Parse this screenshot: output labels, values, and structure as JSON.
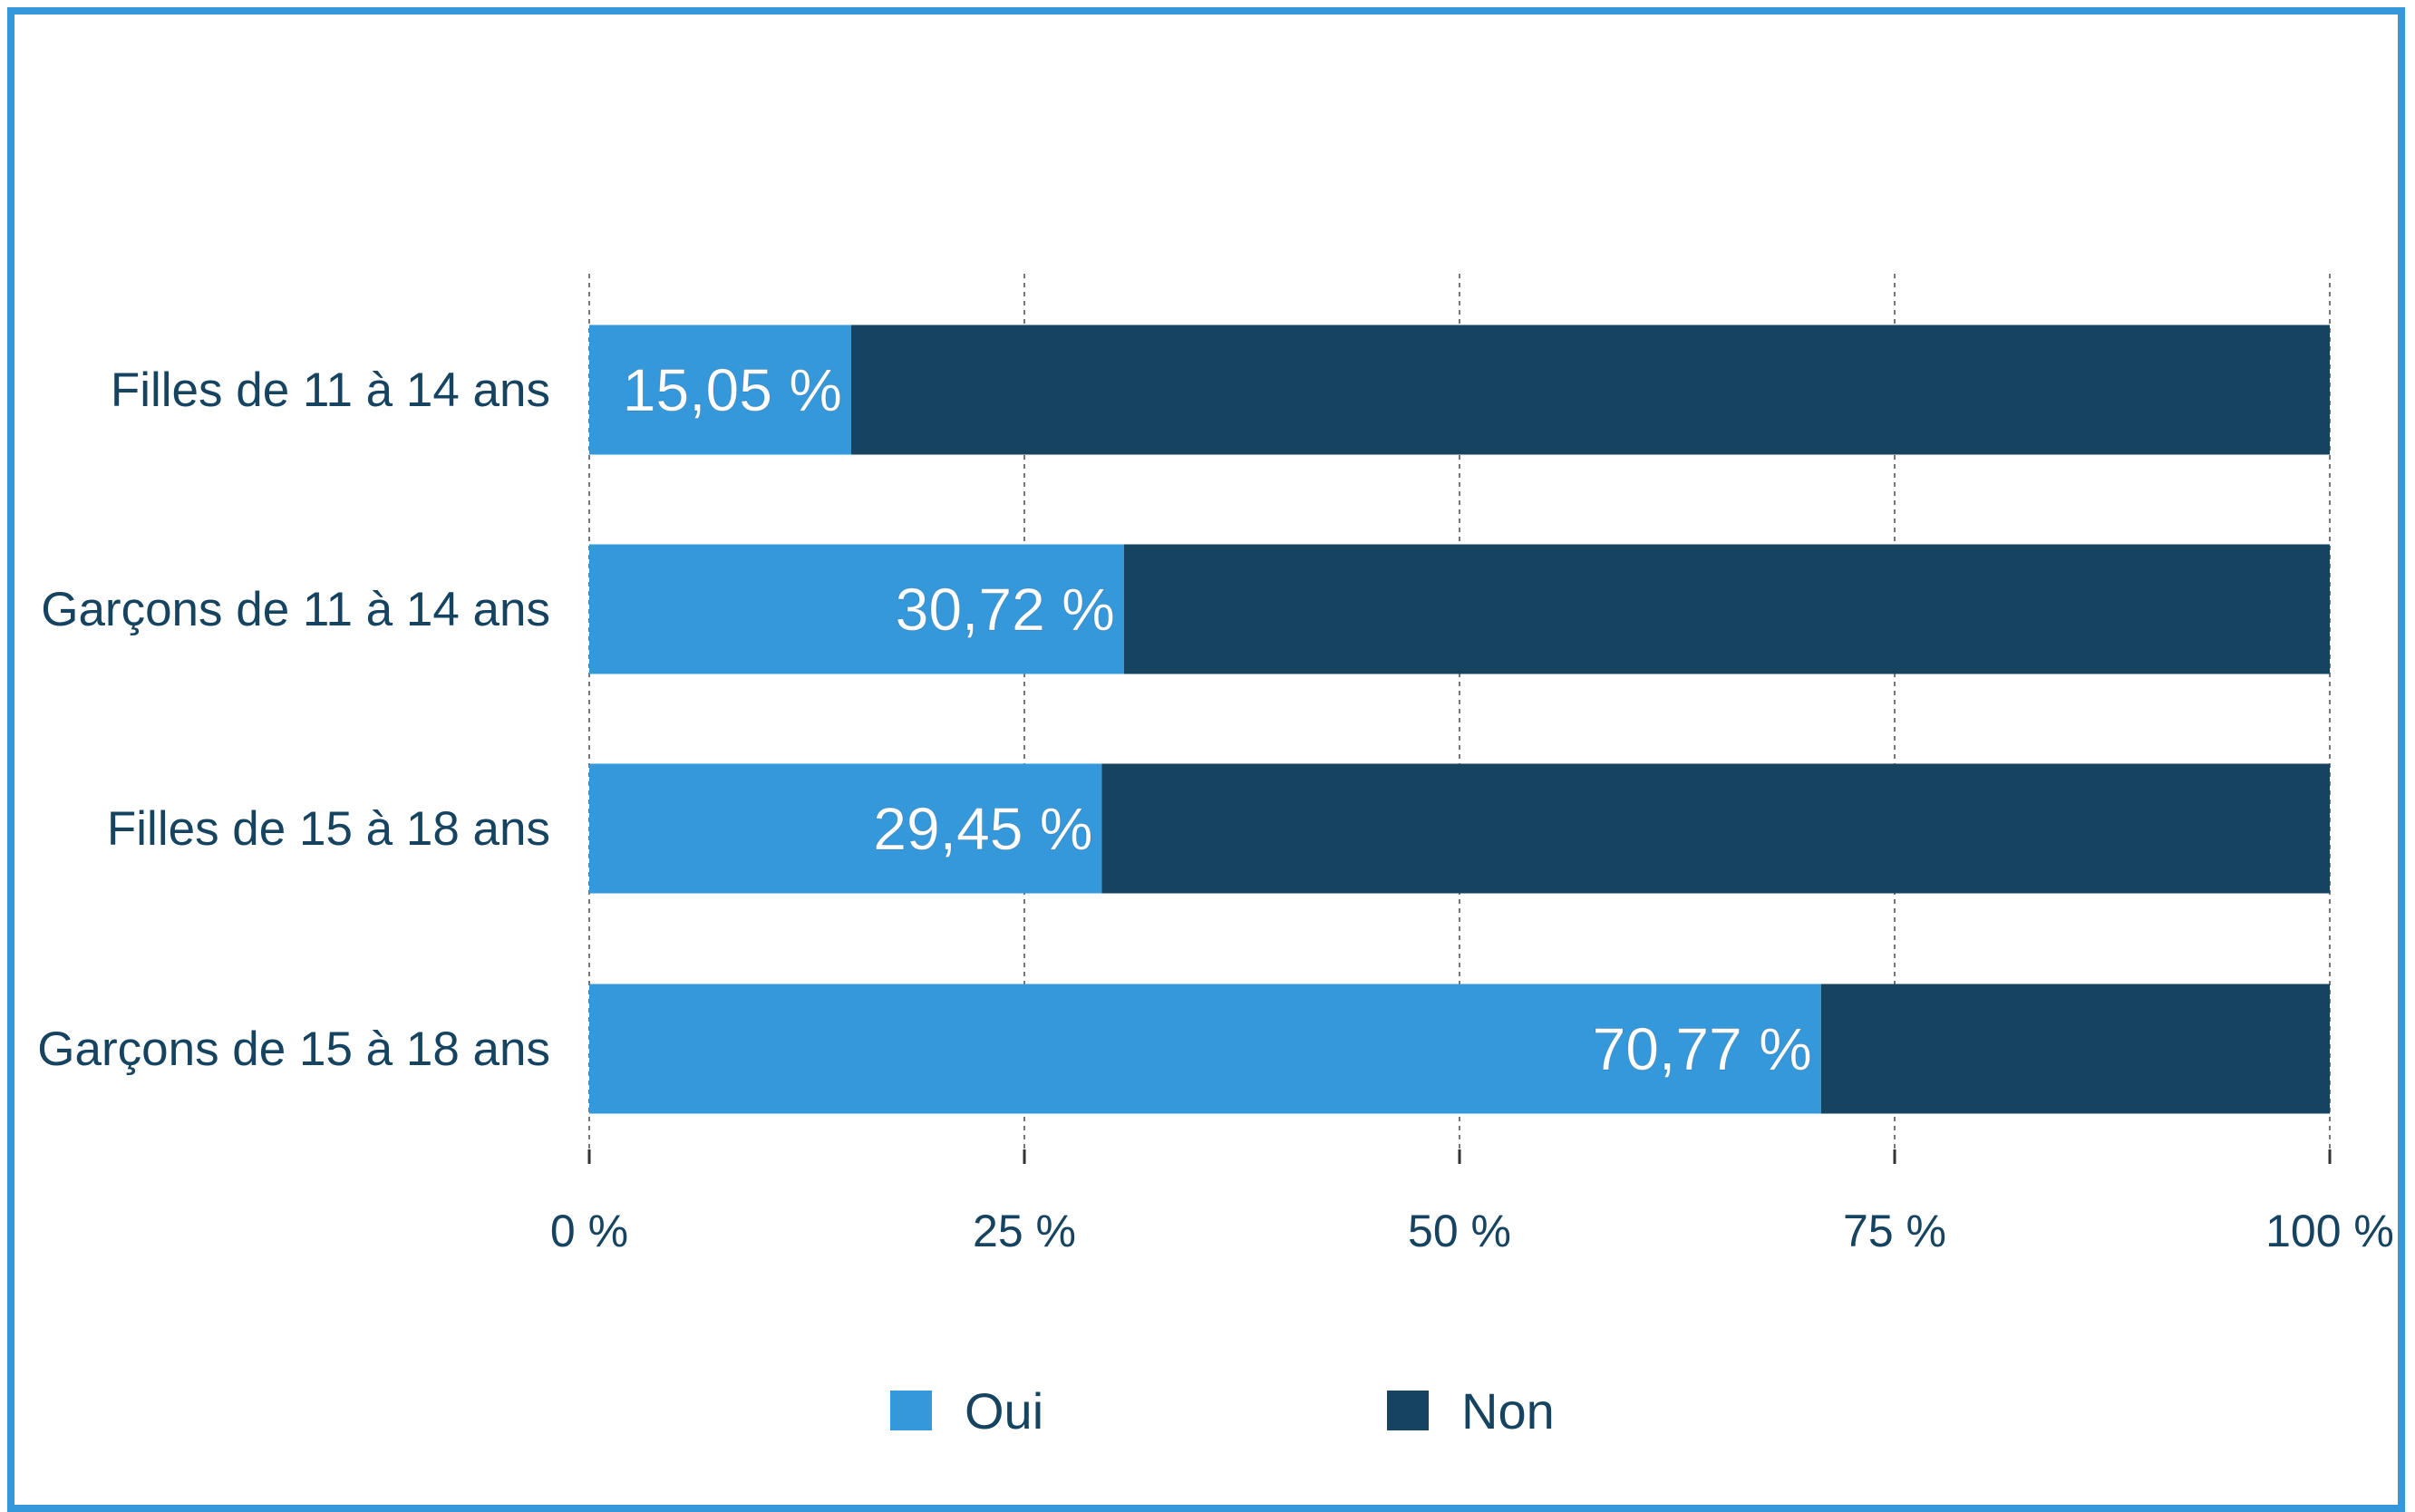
{
  "chart_data": {
    "type": "bar",
    "orientation": "horizontal",
    "stacked": true,
    "categories": [
      "Filles de 11 à 14 ans",
      "Garçons de 11 à 14 ans",
      "Filles de 15 à 18 ans",
      "Garçons de 15 à 18 ans"
    ],
    "series": [
      {
        "name": "Oui",
        "values": [
          15.05,
          30.72,
          29.45,
          70.77
        ],
        "labels": [
          "15,05 %",
          "30,72 %",
          "29,45 %",
          "70,77 %"
        ],
        "color": "#3498db"
      },
      {
        "name": "Non",
        "values": [
          84.95,
          69.28,
          70.55,
          29.23
        ],
        "color": "#154360"
      }
    ],
    "xlim": [
      0,
      100
    ],
    "xticks": [
      0,
      25,
      50,
      75,
      100
    ],
    "xtick_labels": [
      "0 %",
      "25 %",
      "50 %",
      "75 %",
      "100 %"
    ],
    "grid": "vertical dashed",
    "legend": "bottom-center",
    "title": "",
    "xlabel": "",
    "ylabel": ""
  },
  "colors": {
    "frame": "#3498db",
    "text": "#154360",
    "grid": "#777777"
  }
}
